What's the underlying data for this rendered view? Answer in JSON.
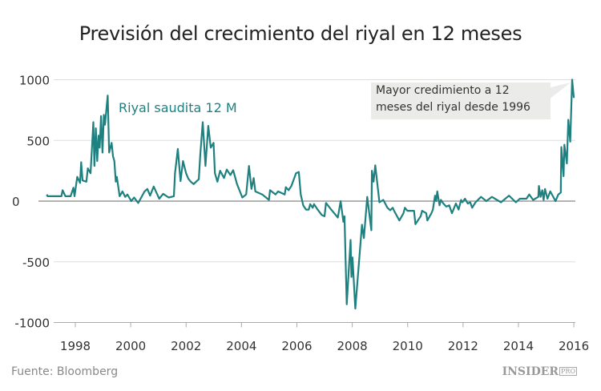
{
  "chart_data": {
    "type": "line",
    "title": "Previsión del crecimiento del riyal en 12 meses",
    "xlabel": "",
    "ylabel": "",
    "xlim": [
      1996.9,
      2016.05
    ],
    "ylim": [
      -1000,
      1000
    ],
    "x_ticks": [
      "1998",
      "2000",
      "2002",
      "2004",
      "2006",
      "2008",
      "2010",
      "2012",
      "2014",
      "2016"
    ],
    "y_ticks": [
      "1000",
      "500",
      "0",
      "-500",
      "-1000"
    ],
    "grid": "horizontal",
    "series": [
      {
        "name": "Riyal saudita 12 M",
        "color": "#1f8080",
        "points": [
          [
            1996.97,
            55
          ],
          [
            1997.0,
            40
          ],
          [
            1997.5,
            40
          ],
          [
            1997.54,
            90
          ],
          [
            1997.64,
            40
          ],
          [
            1997.83,
            40
          ],
          [
            1997.93,
            110
          ],
          [
            1997.97,
            40
          ],
          [
            1998.07,
            200
          ],
          [
            1998.17,
            150
          ],
          [
            1998.21,
            320
          ],
          [
            1998.26,
            170
          ],
          [
            1998.4,
            160
          ],
          [
            1998.45,
            270
          ],
          [
            1998.55,
            230
          ],
          [
            1998.65,
            650
          ],
          [
            1998.69,
            290
          ],
          [
            1998.74,
            600
          ],
          [
            1998.79,
            330
          ],
          [
            1998.84,
            540
          ],
          [
            1998.88,
            440
          ],
          [
            1998.93,
            700
          ],
          [
            1998.98,
            400
          ],
          [
            1999.03,
            710
          ],
          [
            1999.07,
            630
          ],
          [
            1999.17,
            870
          ],
          [
            1999.22,
            400
          ],
          [
            1999.31,
            480
          ],
          [
            1999.36,
            370
          ],
          [
            1999.41,
            330
          ],
          [
            1999.46,
            160
          ],
          [
            1999.5,
            200
          ],
          [
            1999.6,
            40
          ],
          [
            1999.7,
            80
          ],
          [
            1999.8,
            35
          ],
          [
            1999.88,
            55
          ],
          [
            2000.02,
            0
          ],
          [
            2000.12,
            30
          ],
          [
            2000.27,
            -15
          ],
          [
            2000.5,
            80
          ],
          [
            2000.6,
            100
          ],
          [
            2000.7,
            45
          ],
          [
            2000.83,
            120
          ],
          [
            2001.03,
            20
          ],
          [
            2001.17,
            60
          ],
          [
            2001.37,
            30
          ],
          [
            2001.56,
            40
          ],
          [
            2001.6,
            230
          ],
          [
            2001.7,
            430
          ],
          [
            2001.8,
            165
          ],
          [
            2001.89,
            330
          ],
          [
            2002.0,
            230
          ],
          [
            2002.08,
            185
          ],
          [
            2002.17,
            160
          ],
          [
            2002.27,
            140
          ],
          [
            2002.36,
            160
          ],
          [
            2002.46,
            180
          ],
          [
            2002.51,
            380
          ],
          [
            2002.6,
            650
          ],
          [
            2002.7,
            290
          ],
          [
            2002.8,
            620
          ],
          [
            2002.89,
            440
          ],
          [
            2002.99,
            480
          ],
          [
            2003.04,
            230
          ],
          [
            2003.13,
            160
          ],
          [
            2003.23,
            250
          ],
          [
            2003.37,
            190
          ],
          [
            2003.47,
            260
          ],
          [
            2003.6,
            215
          ],
          [
            2003.7,
            255
          ],
          [
            2003.84,
            140
          ],
          [
            2004.03,
            30
          ],
          [
            2004.17,
            55
          ],
          [
            2004.27,
            290
          ],
          [
            2004.36,
            100
          ],
          [
            2004.44,
            190
          ],
          [
            2004.5,
            80
          ],
          [
            2004.75,
            55
          ],
          [
            2004.99,
            10
          ],
          [
            2005.03,
            90
          ],
          [
            2005.23,
            55
          ],
          [
            2005.32,
            80
          ],
          [
            2005.56,
            55
          ],
          [
            2005.6,
            115
          ],
          [
            2005.7,
            90
          ],
          [
            2005.8,
            125
          ],
          [
            2005.97,
            230
          ],
          [
            2006.07,
            240
          ],
          [
            2006.14,
            55
          ],
          [
            2006.23,
            -35
          ],
          [
            2006.33,
            -70
          ],
          [
            2006.43,
            -70
          ],
          [
            2006.48,
            -25
          ],
          [
            2006.57,
            -55
          ],
          [
            2006.62,
            -25
          ],
          [
            2006.75,
            -70
          ],
          [
            2006.9,
            -115
          ],
          [
            2007.0,
            -125
          ],
          [
            2007.05,
            -15
          ],
          [
            2007.24,
            -70
          ],
          [
            2007.48,
            -135
          ],
          [
            2007.58,
            0
          ],
          [
            2007.68,
            -170
          ],
          [
            2007.72,
            -125
          ],
          [
            2007.8,
            -850
          ],
          [
            2007.94,
            -320
          ],
          [
            2007.97,
            -625
          ],
          [
            2008.01,
            -465
          ],
          [
            2008.11,
            -885
          ],
          [
            2008.35,
            -195
          ],
          [
            2008.42,
            -305
          ],
          [
            2008.54,
            35
          ],
          [
            2008.69,
            -240
          ],
          [
            2008.71,
            250
          ],
          [
            2008.77,
            160
          ],
          [
            2008.83,
            295
          ],
          [
            2008.98,
            -10
          ],
          [
            2009.12,
            10
          ],
          [
            2009.27,
            -55
          ],
          [
            2009.37,
            -75
          ],
          [
            2009.46,
            -55
          ],
          [
            2009.51,
            -80
          ],
          [
            2009.7,
            -160
          ],
          [
            2009.85,
            -100
          ],
          [
            2009.9,
            -55
          ],
          [
            2009.99,
            -80
          ],
          [
            2010.23,
            -80
          ],
          [
            2010.28,
            -190
          ],
          [
            2010.47,
            -125
          ],
          [
            2010.52,
            -80
          ],
          [
            2010.67,
            -100
          ],
          [
            2010.71,
            -160
          ],
          [
            2010.86,
            -100
          ],
          [
            2010.91,
            -70
          ],
          [
            2010.99,
            45
          ],
          [
            2011.03,
            0
          ],
          [
            2011.07,
            80
          ],
          [
            2011.15,
            -35
          ],
          [
            2011.2,
            10
          ],
          [
            2011.29,
            -20
          ],
          [
            2011.39,
            -45
          ],
          [
            2011.5,
            -35
          ],
          [
            2011.6,
            -100
          ],
          [
            2011.74,
            -20
          ],
          [
            2011.84,
            -70
          ],
          [
            2011.93,
            10
          ],
          [
            2011.98,
            -10
          ],
          [
            2012.07,
            20
          ],
          [
            2012.17,
            -20
          ],
          [
            2012.26,
            -10
          ],
          [
            2012.33,
            -55
          ],
          [
            2012.45,
            -10
          ],
          [
            2012.65,
            35
          ],
          [
            2012.84,
            0
          ],
          [
            2013.04,
            35
          ],
          [
            2013.37,
            -10
          ],
          [
            2013.66,
            45
          ],
          [
            2013.91,
            -10
          ],
          [
            2014.05,
            20
          ],
          [
            2014.29,
            20
          ],
          [
            2014.39,
            55
          ],
          [
            2014.53,
            10
          ],
          [
            2014.72,
            35
          ],
          [
            2014.74,
            125
          ],
          [
            2014.8,
            35
          ],
          [
            2014.86,
            90
          ],
          [
            2014.91,
            10
          ],
          [
            2014.96,
            100
          ],
          [
            2015.05,
            20
          ],
          [
            2015.15,
            80
          ],
          [
            2015.34,
            0
          ],
          [
            2015.44,
            55
          ],
          [
            2015.53,
            70
          ],
          [
            2015.55,
            445
          ],
          [
            2015.63,
            205
          ],
          [
            2015.66,
            465
          ],
          [
            2015.75,
            310
          ],
          [
            2015.8,
            670
          ],
          [
            2015.87,
            490
          ],
          [
            2015.94,
            1000
          ],
          [
            2016.0,
            850
          ]
        ]
      }
    ],
    "annotations": [
      {
        "text": "Riyal saudita 12 M"
      },
      {
        "text": "Mayor credimiento a 12 meses del riyal desde 1996"
      }
    ],
    "legend": "none"
  },
  "footer": {
    "source": "Fuente: Bloomberg",
    "logo_main": "INSIDER",
    "logo_sub": "PRO"
  }
}
